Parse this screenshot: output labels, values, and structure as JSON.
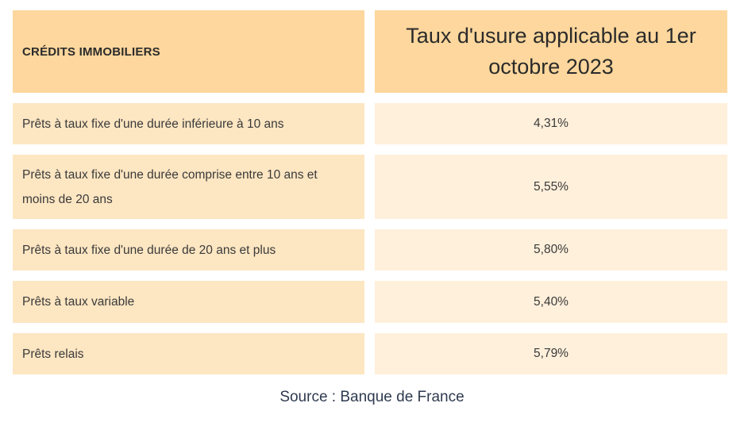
{
  "table": {
    "header": {
      "left": "CRÉDITS IMMOBILIERS",
      "right": "Taux d'usure applicable au 1er octobre 2023"
    },
    "rows": [
      {
        "label": "Prêts à taux fixe d'une durée inférieure à 10 ans",
        "rate": "4,31%"
      },
      {
        "label": "Prêts à taux fixe d'une durée comprise entre 10 ans et moins de 20 ans",
        "rate": "5,55%"
      },
      {
        "label": "Prêts à taux fixe d'une durée de 20 ans et plus",
        "rate": "5,80%"
      },
      {
        "label": "Prêts à taux variable",
        "rate": "5,40%"
      },
      {
        "label": "Prêts relais",
        "rate": "5,79%"
      }
    ]
  },
  "source": "Source : Banque de France",
  "colors": {
    "header_bg": "#fdd79d",
    "row_label_bg": "#fde6c2",
    "row_value_bg": "#fff0db"
  }
}
